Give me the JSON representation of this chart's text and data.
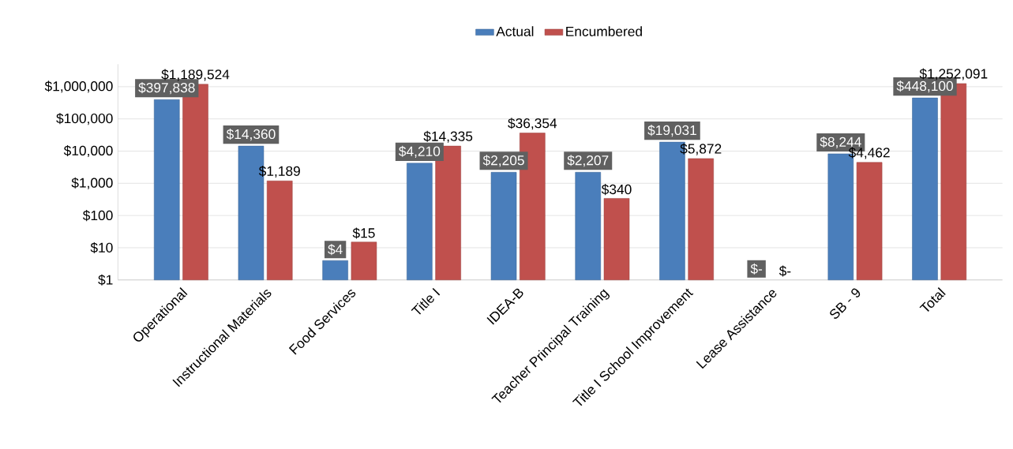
{
  "chart_data": {
    "type": "bar",
    "log": "y",
    "grid": "y",
    "legend": "top",
    "categories": [
      "Operational",
      "Instructional Materials",
      "Food Services",
      "Title I",
      "IDEA-B",
      "Teacher Principal Training",
      "Title I School Improvement",
      "Lease Assistance",
      "SB - 9",
      "Total"
    ],
    "ylim": [
      1,
      5000000
    ],
    "yticks": [
      {
        "value": 1,
        "label": "$1"
      },
      {
        "value": 10,
        "label": "$10"
      },
      {
        "value": 100,
        "label": "$100"
      },
      {
        "value": 1000,
        "label": "$1,000"
      },
      {
        "value": 10000,
        "label": "$10,000"
      },
      {
        "value": 100000,
        "label": "$100,000"
      },
      {
        "value": 1000000,
        "label": "$1,000,000"
      }
    ],
    "series": [
      {
        "name": "Actual",
        "color": "#4a7ebb",
        "values": [
          397838,
          14360,
          4,
          4210,
          2205,
          2207,
          19031,
          null,
          8244,
          448100
        ],
        "value_labels": [
          "$397,838",
          "$14,360",
          "$4",
          "$4,210",
          "$2,205",
          "$2,207",
          "$19,031",
          "$-",
          "$8,244",
          "$448,100"
        ]
      },
      {
        "name": "Encumbered",
        "color": "#c0504d",
        "values": [
          1189524,
          1189,
          15,
          14335,
          36354,
          340,
          5872,
          null,
          4462,
          1252091
        ],
        "value_labels": [
          "$1,189,524",
          "$1,189",
          "$15",
          "$14,335",
          "$36,354",
          "$340",
          "$5,872",
          "$-",
          "$4,462",
          "$1,252,091"
        ]
      }
    ]
  }
}
